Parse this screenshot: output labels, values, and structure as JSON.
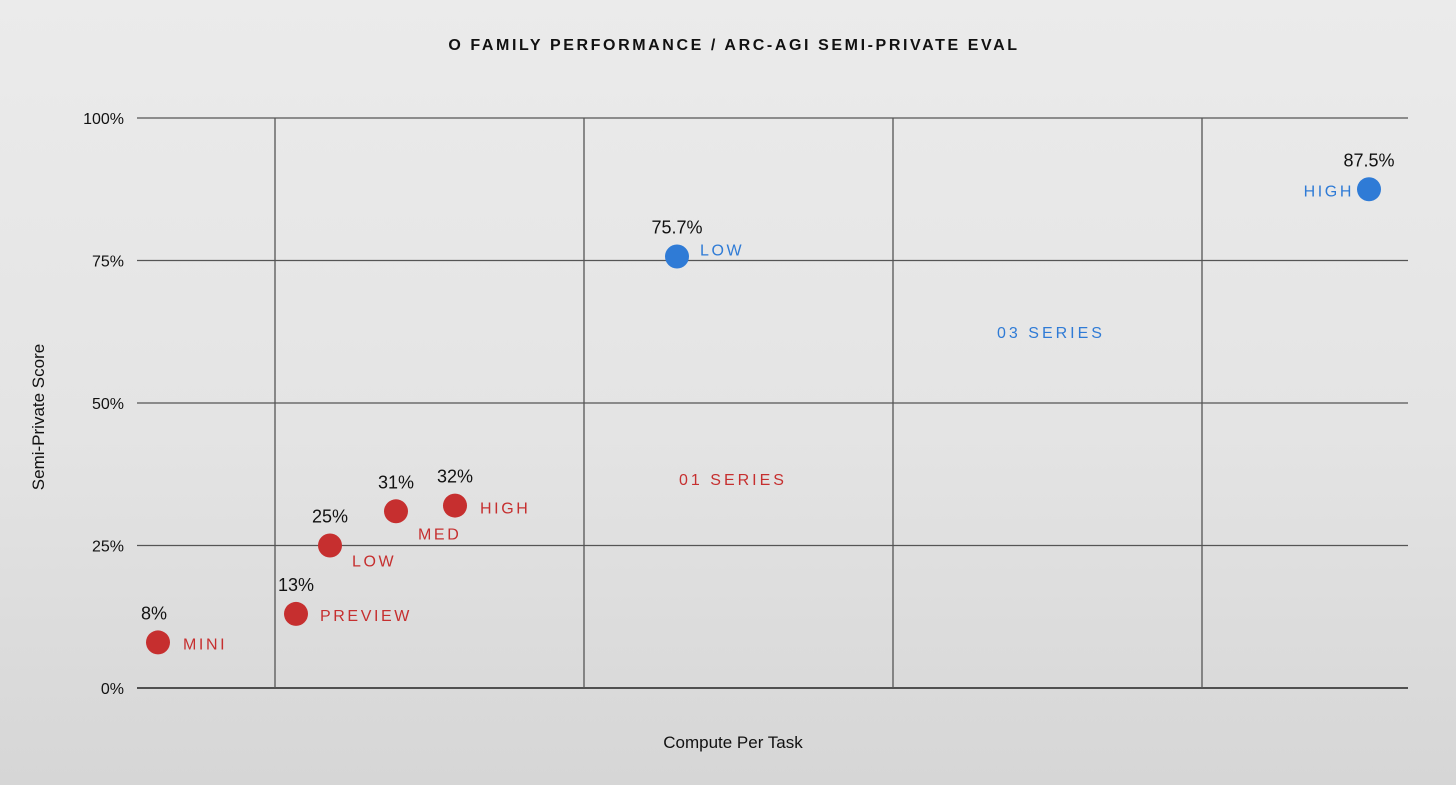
{
  "chart_data": {
    "type": "scatter",
    "title": "O FAMILY PERFORMANCE / ARC-AGI SEMI-PRIVATE EVAL",
    "xlabel": "Compute Per Task",
    "ylabel": "Semi-Private Score",
    "ylim": [
      0,
      100
    ],
    "yticks": [
      "0%",
      "25%",
      "50%",
      "75%",
      "100%"
    ],
    "grid": true,
    "x_scale": "unlabeled",
    "colors": {
      "o1": "#c62f2f",
      "o3": "#2f7bd6",
      "grid": "#555555"
    },
    "series": [
      {
        "name": "01 SERIES",
        "color": "#c62f2f",
        "points": [
          {
            "label": "MINI",
            "value_label": "8%",
            "y": 8
          },
          {
            "label": "PREVIEW",
            "value_label": "13%",
            "y": 13
          },
          {
            "label": "LOW",
            "value_label": "25%",
            "y": 25
          },
          {
            "label": "MED",
            "value_label": "31%",
            "y": 31
          },
          {
            "label": "HIGH",
            "value_label": "32%",
            "y": 32
          }
        ]
      },
      {
        "name": "03 SERIES",
        "color": "#2f7bd6",
        "points": [
          {
            "label": "LOW",
            "value_label": "75.7%",
            "y": 75.7
          },
          {
            "label": "HIGH",
            "value_label": "87.5%",
            "y": 87.5
          }
        ]
      }
    ]
  }
}
